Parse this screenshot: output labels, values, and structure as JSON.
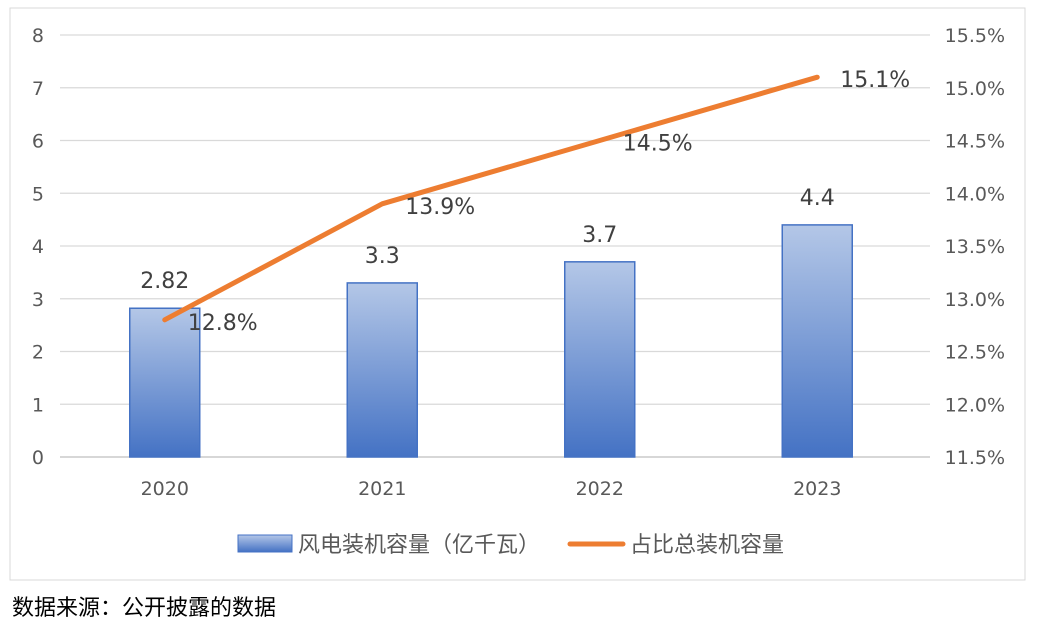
{
  "chart_data": {
    "type": "bar+line",
    "categories": [
      "2020",
      "2021",
      "2022",
      "2023"
    ],
    "series": [
      {
        "name": "风电装机容量（亿千瓦）",
        "type": "bar",
        "axis": "left",
        "values": [
          2.82,
          3.3,
          3.7,
          4.4
        ],
        "labels": [
          "2.82",
          "3.3",
          "3.7",
          "4.4"
        ],
        "color": "#4472c4",
        "color_light": "#b4c7e7"
      },
      {
        "name": "占比总装机容量",
        "type": "line",
        "axis": "right",
        "values": [
          12.8,
          13.9,
          14.5,
          15.1
        ],
        "labels": [
          "12.8%",
          "13.9%",
          "14.5%",
          "15.1%"
        ],
        "color": "#ed7d31"
      }
    ],
    "y_left": {
      "range": [
        0,
        8
      ],
      "ticks": [
        "0",
        "1",
        "2",
        "3",
        "4",
        "5",
        "6",
        "7",
        "8"
      ]
    },
    "y_right": {
      "range": [
        11.5,
        15.5
      ],
      "ticks": [
        "11.5%",
        "12.0%",
        "12.5%",
        "13.0%",
        "13.5%",
        "14.0%",
        "14.5%",
        "15.0%",
        "15.5%"
      ]
    },
    "grid": true,
    "legend": "bottom"
  },
  "source": "数据来源：公开披露的数据"
}
